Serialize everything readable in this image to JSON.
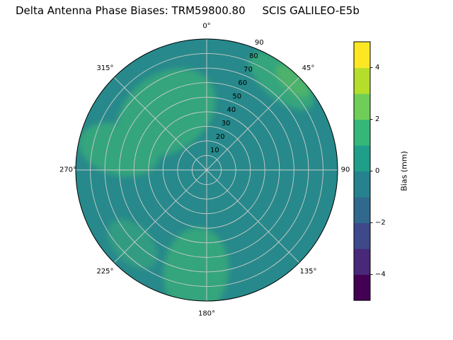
{
  "title": "Delta Antenna Phase Biases: TRM59800.80     SCIS GALILEO-E5b",
  "chart_data": {
    "type": "polar_contour",
    "title": "Delta Antenna Phase Biases: TRM59800.80     SCIS GALILEO-E5b",
    "antenna": "TRM59800.80",
    "calibration": "SCIS",
    "signal": "GALILEO-E5b",
    "angular_ticks": [
      {
        "angle": 0,
        "label": "0°"
      },
      {
        "angle": 45,
        "label": "45°"
      },
      {
        "angle": 90,
        "label": "90"
      },
      {
        "angle": 135,
        "label": "135°"
      },
      {
        "angle": 180,
        "label": "180°"
      },
      {
        "angle": 225,
        "label": "225°"
      },
      {
        "angle": 270,
        "label": "270°"
      },
      {
        "angle": 315,
        "label": "315°"
      }
    ],
    "radial_ticks": [
      10,
      20,
      30,
      40,
      50,
      60,
      70,
      80,
      90
    ],
    "radial_max": 90,
    "radial_label_angle_deg": 22.5,
    "grid": true,
    "field": {
      "base_value": 0.5,
      "base_color": "#27898B",
      "regions": [
        {
          "angle": 325,
          "r": 48,
          "rx": 75,
          "ry": 55,
          "rot": -35,
          "value": 1.5,
          "color": "#34A57D"
        },
        {
          "angle": 283,
          "r": 62,
          "rx": 58,
          "ry": 36,
          "rot": 15,
          "value": 1.5,
          "color": "#34A57D"
        },
        {
          "angle": 186,
          "r": 70,
          "rx": 46,
          "ry": 62,
          "rot": 6,
          "value": 1.5,
          "color": "#34A57D"
        },
        {
          "angle": 225,
          "r": 72,
          "rx": 42,
          "ry": 26,
          "rot": 45,
          "value": 1.2,
          "color": "#309C82"
        },
        {
          "angle": 40,
          "r": 80,
          "rx": 56,
          "ry": 26,
          "rot": 40,
          "value": 1.5,
          "color": "#34A57D"
        },
        {
          "angle": 44,
          "r": 85,
          "rx": 30,
          "ry": 14,
          "rot": 44,
          "value": 2.5,
          "color": "#4DB26A"
        }
      ]
    },
    "colorbar": {
      "label": "Bias (mm)",
      "ticks": [
        "4",
        "2",
        "0",
        "−2",
        "−4"
      ],
      "tick_values": [
        4,
        2,
        0,
        -2,
        -4
      ],
      "vmin": -5,
      "vmax": 5,
      "colors": [
        "#440154",
        "#482878",
        "#3e4989",
        "#31688e",
        "#26828e",
        "#1f9e89",
        "#35b779",
        "#6ece58",
        "#b5de2b",
        "#fde725"
      ],
      "position": "right"
    }
  }
}
